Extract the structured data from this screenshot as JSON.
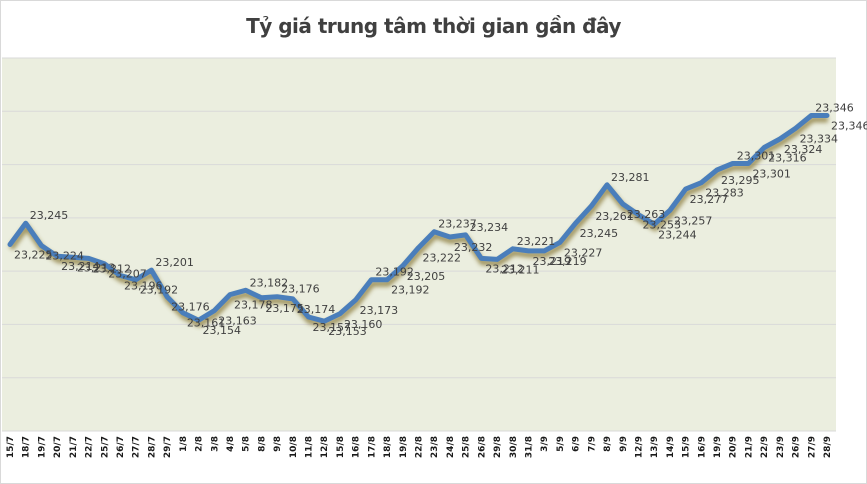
{
  "title": "Tỷ giá trung tâm thời gian gần đây",
  "colors": {
    "plot_background": "#ebeedf",
    "line": "#4a7ebb",
    "shadow": "#8a7a3a",
    "gridline": "#d9d9d9",
    "text": "#404040"
  },
  "chart_data": {
    "type": "line",
    "title": "Tỷ giá trung tâm thời gian gần đây",
    "xlabel": "",
    "ylabel": "",
    "ylim": [
      23050,
      23400
    ],
    "grid": true,
    "y_gridlines": [
      23050,
      23100,
      23150,
      23200,
      23250,
      23300,
      23350,
      23400
    ],
    "y_tick_labels_visible": false,
    "legend": "none",
    "categories": [
      "15/7",
      "18/7",
      "19/7",
      "20/7",
      "21/7",
      "22/7",
      "25/7",
      "26/7",
      "27/7",
      "28/7",
      "29/7",
      "1/8",
      "2/8",
      "3/8",
      "4/8",
      "5/8",
      "8/8",
      "9/8",
      "10/8",
      "11/8",
      "12/8",
      "15/8",
      "16/8",
      "17/8",
      "18/8",
      "19/8",
      "22/8",
      "23/8",
      "24/8",
      "25/8",
      "26/8",
      "29/8",
      "30/8",
      "31/8",
      "3/9",
      "5/9",
      "6/9",
      "7/9",
      "8/9",
      "9/9",
      "12/9",
      "13/9",
      "14/9",
      "15/9",
      "16/9",
      "19/9",
      "20/9",
      "21/9",
      "22/9",
      "23/9",
      "26/9",
      "27/9",
      "28/9"
    ],
    "series": [
      {
        "name": "Tỷ giá trung tâm",
        "values": [
          23225,
          23245,
          23224,
          23214,
          23213,
          23212,
          23207,
          23196,
          23192,
          23201,
          23176,
          23161,
          23154,
          23163,
          23178,
          23182,
          23175,
          23176,
          23174,
          23157,
          23153,
          23160,
          23173,
          23192,
          23192,
          23205,
          23222,
          23237,
          23232,
          23234,
          23212,
          23211,
          23221,
          23219,
          23219,
          23227,
          23245,
          23261,
          23281,
          23263,
          23253,
          23244,
          23257,
          23277,
          23283,
          23295,
          23301,
          23301,
          23316,
          23324,
          23334,
          23346,
          23346
        ],
        "data_labels": [
          "23,225",
          "23,245",
          "23,224",
          "23,214",
          "23,213",
          "23,212",
          "23,207",
          "23,196",
          "23,192",
          "23,201",
          "23,176",
          "23,161",
          "23,154",
          "23,163",
          "23,178",
          "23,182",
          "23,175",
          "23,176",
          "23,174",
          "23,157",
          "23,153",
          "23,160",
          "23,173",
          "23,192",
          "23,192",
          "23,205",
          "23,222",
          "23,237",
          "23,232",
          "23,234",
          "23,212",
          "23,211",
          "23,221",
          "23,219",
          "23,219",
          "23,227",
          "23,245",
          "23,261",
          "23,281",
          "23,263",
          "23,253",
          "23,244",
          "23,257",
          "23,277",
          "23,283",
          "23,295",
          "23,301",
          "23,301",
          "23,316",
          "23,324",
          "23,334",
          "23,346",
          "23,346"
        ]
      }
    ]
  }
}
